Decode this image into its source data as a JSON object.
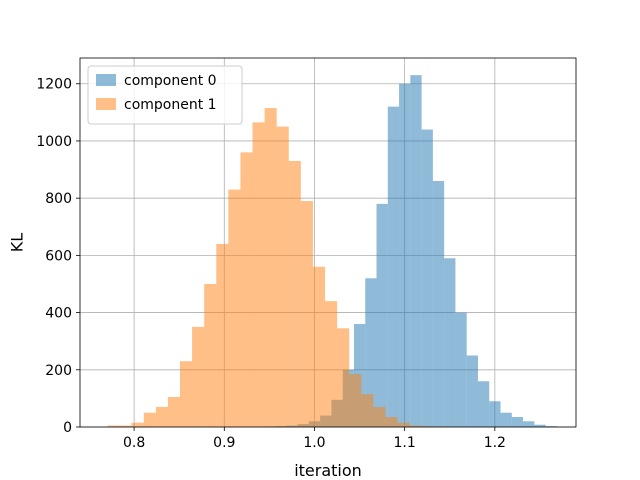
{
  "chart_data": {
    "type": "histogram",
    "xlabel": "iteration",
    "ylabel": "KL",
    "xlim": [
      0.74,
      1.29
    ],
    "ylim": [
      0,
      1290
    ],
    "xticks": [
      0.8,
      0.9,
      1.0,
      1.1,
      1.2
    ],
    "xtick_labels": [
      "0.8",
      "0.9",
      "1.0",
      "1.1",
      "1.2"
    ],
    "yticks": [
      0,
      200,
      400,
      600,
      800,
      1000,
      1200
    ],
    "ytick_labels": [
      "0",
      "200",
      "400",
      "600",
      "800",
      "1000",
      "1200"
    ],
    "grid": true,
    "legend_position": "top-left",
    "series": [
      {
        "name": "component 0",
        "color": "#1f77b4",
        "opacity": 0.5,
        "bin_width": 0.0125,
        "bin_starts": [
          0.9438,
          0.9563,
          0.9688,
          0.9813,
          0.9938,
          1.0063,
          1.0188,
          1.0313,
          1.0438,
          1.0563,
          1.0688,
          1.0813,
          1.0938,
          1.1063,
          1.1188,
          1.1313,
          1.1438,
          1.1563,
          1.1688,
          1.1813,
          1.1938,
          1.2063,
          1.2188,
          1.2313,
          1.2438,
          1.2563
        ],
        "counts": [
          2,
          3,
          5,
          10,
          20,
          40,
          95,
          200,
          360,
          520,
          780,
          1120,
          1200,
          1230,
          1040,
          860,
          590,
          400,
          250,
          160,
          90,
          50,
          35,
          20,
          8,
          3
        ]
      },
      {
        "name": "component 1",
        "color": "#ff7f0e",
        "opacity": 0.5,
        "bin_width": 0.0134,
        "bin_starts": [
          0.7705,
          0.7839,
          0.7973,
          0.8107,
          0.8241,
          0.8375,
          0.8509,
          0.8643,
          0.8777,
          0.8911,
          0.9045,
          0.9179,
          0.9313,
          0.9447,
          0.9581,
          0.9715,
          0.9849,
          0.9983,
          1.0117,
          1.0251,
          1.0385,
          1.0519,
          1.0653,
          1.0787,
          1.0921,
          1.1055,
          1.1189,
          1.1323,
          1.1457,
          1.1591
        ],
        "counts": [
          5,
          5,
          15,
          50,
          70,
          105,
          230,
          350,
          500,
          640,
          830,
          960,
          1065,
          1115,
          1050,
          930,
          790,
          560,
          440,
          345,
          185,
          115,
          70,
          35,
          15,
          5,
          3,
          2,
          1,
          0
        ]
      }
    ]
  }
}
